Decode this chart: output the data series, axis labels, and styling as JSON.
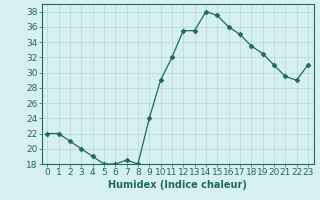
{
  "x": [
    0,
    1,
    2,
    3,
    4,
    5,
    6,
    7,
    8,
    9,
    10,
    11,
    12,
    13,
    14,
    15,
    16,
    17,
    18,
    19,
    20,
    21,
    22,
    23
  ],
  "y": [
    22,
    22,
    21,
    20,
    19,
    18,
    18,
    18.5,
    18,
    24,
    29,
    32,
    35.5,
    35.5,
    38,
    37.5,
    36,
    35,
    33.5,
    32.5,
    31,
    29.5,
    29,
    31
  ],
  "line_color": "#1e6b5e",
  "marker": "D",
  "marker_size": 2.5,
  "background_color": "#d6efef",
  "grid_color": "#b8d8d8",
  "xlabel": "Humidex (Indice chaleur)",
  "xlim": [
    -0.5,
    23.5
  ],
  "ylim": [
    18,
    39
  ],
  "yticks": [
    18,
    20,
    22,
    24,
    26,
    28,
    30,
    32,
    34,
    36,
    38
  ],
  "xticks": [
    0,
    1,
    2,
    3,
    4,
    5,
    6,
    7,
    8,
    9,
    10,
    11,
    12,
    13,
    14,
    15,
    16,
    17,
    18,
    19,
    20,
    21,
    22,
    23
  ],
  "xlabel_fontsize": 7,
  "tick_fontsize": 6.5
}
